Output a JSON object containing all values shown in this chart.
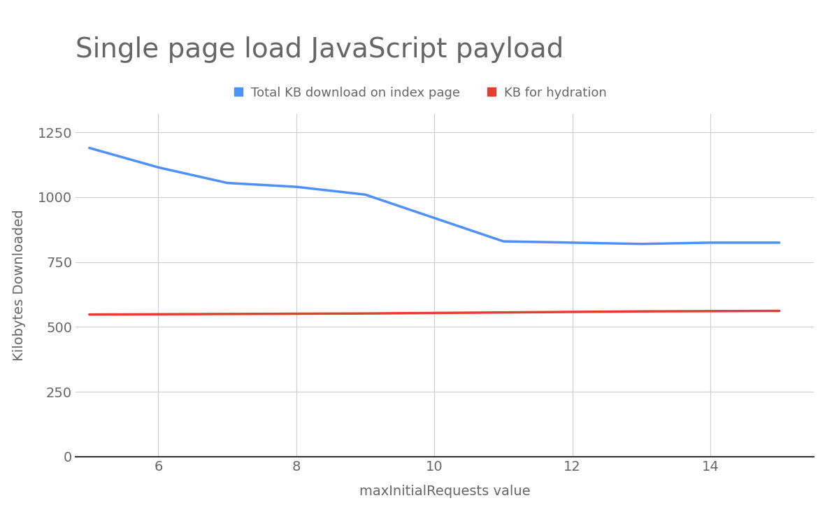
{
  "title": "Single page load JavaScript payload",
  "xlabel": "maxInitialRequests value",
  "ylabel": "Kilobytes Downloaded",
  "background_color": "#ffffff",
  "blue_line": {
    "label": "Total KB download on index page",
    "color": "#4d90fe",
    "x": [
      5,
      6,
      7,
      8,
      9,
      10,
      11,
      12,
      13,
      14,
      15
    ],
    "y": [
      1190,
      1115,
      1055,
      1040,
      1010,
      920,
      830,
      825,
      820,
      825,
      825
    ]
  },
  "red_line": {
    "label": "KB for hydration",
    "color": "#e04030",
    "x": [
      5,
      6,
      7,
      8,
      9,
      10,
      11,
      12,
      13,
      14,
      15
    ],
    "y": [
      548,
      549,
      550,
      551,
      552,
      554,
      556,
      558,
      560,
      561,
      562
    ]
  },
  "xlim": [
    4.8,
    15.5
  ],
  "ylim": [
    0,
    1320
  ],
  "xticks": [
    6,
    8,
    10,
    12,
    14
  ],
  "yticks": [
    0,
    250,
    500,
    750,
    1000,
    1250
  ],
  "grid_color": "#cccccc",
  "title_fontsize": 28,
  "axis_label_fontsize": 14,
  "tick_fontsize": 14,
  "legend_fontsize": 13,
  "line_width": 2.5,
  "title_color": "#666666",
  "axis_color": "#666666",
  "tick_color": "#666666"
}
